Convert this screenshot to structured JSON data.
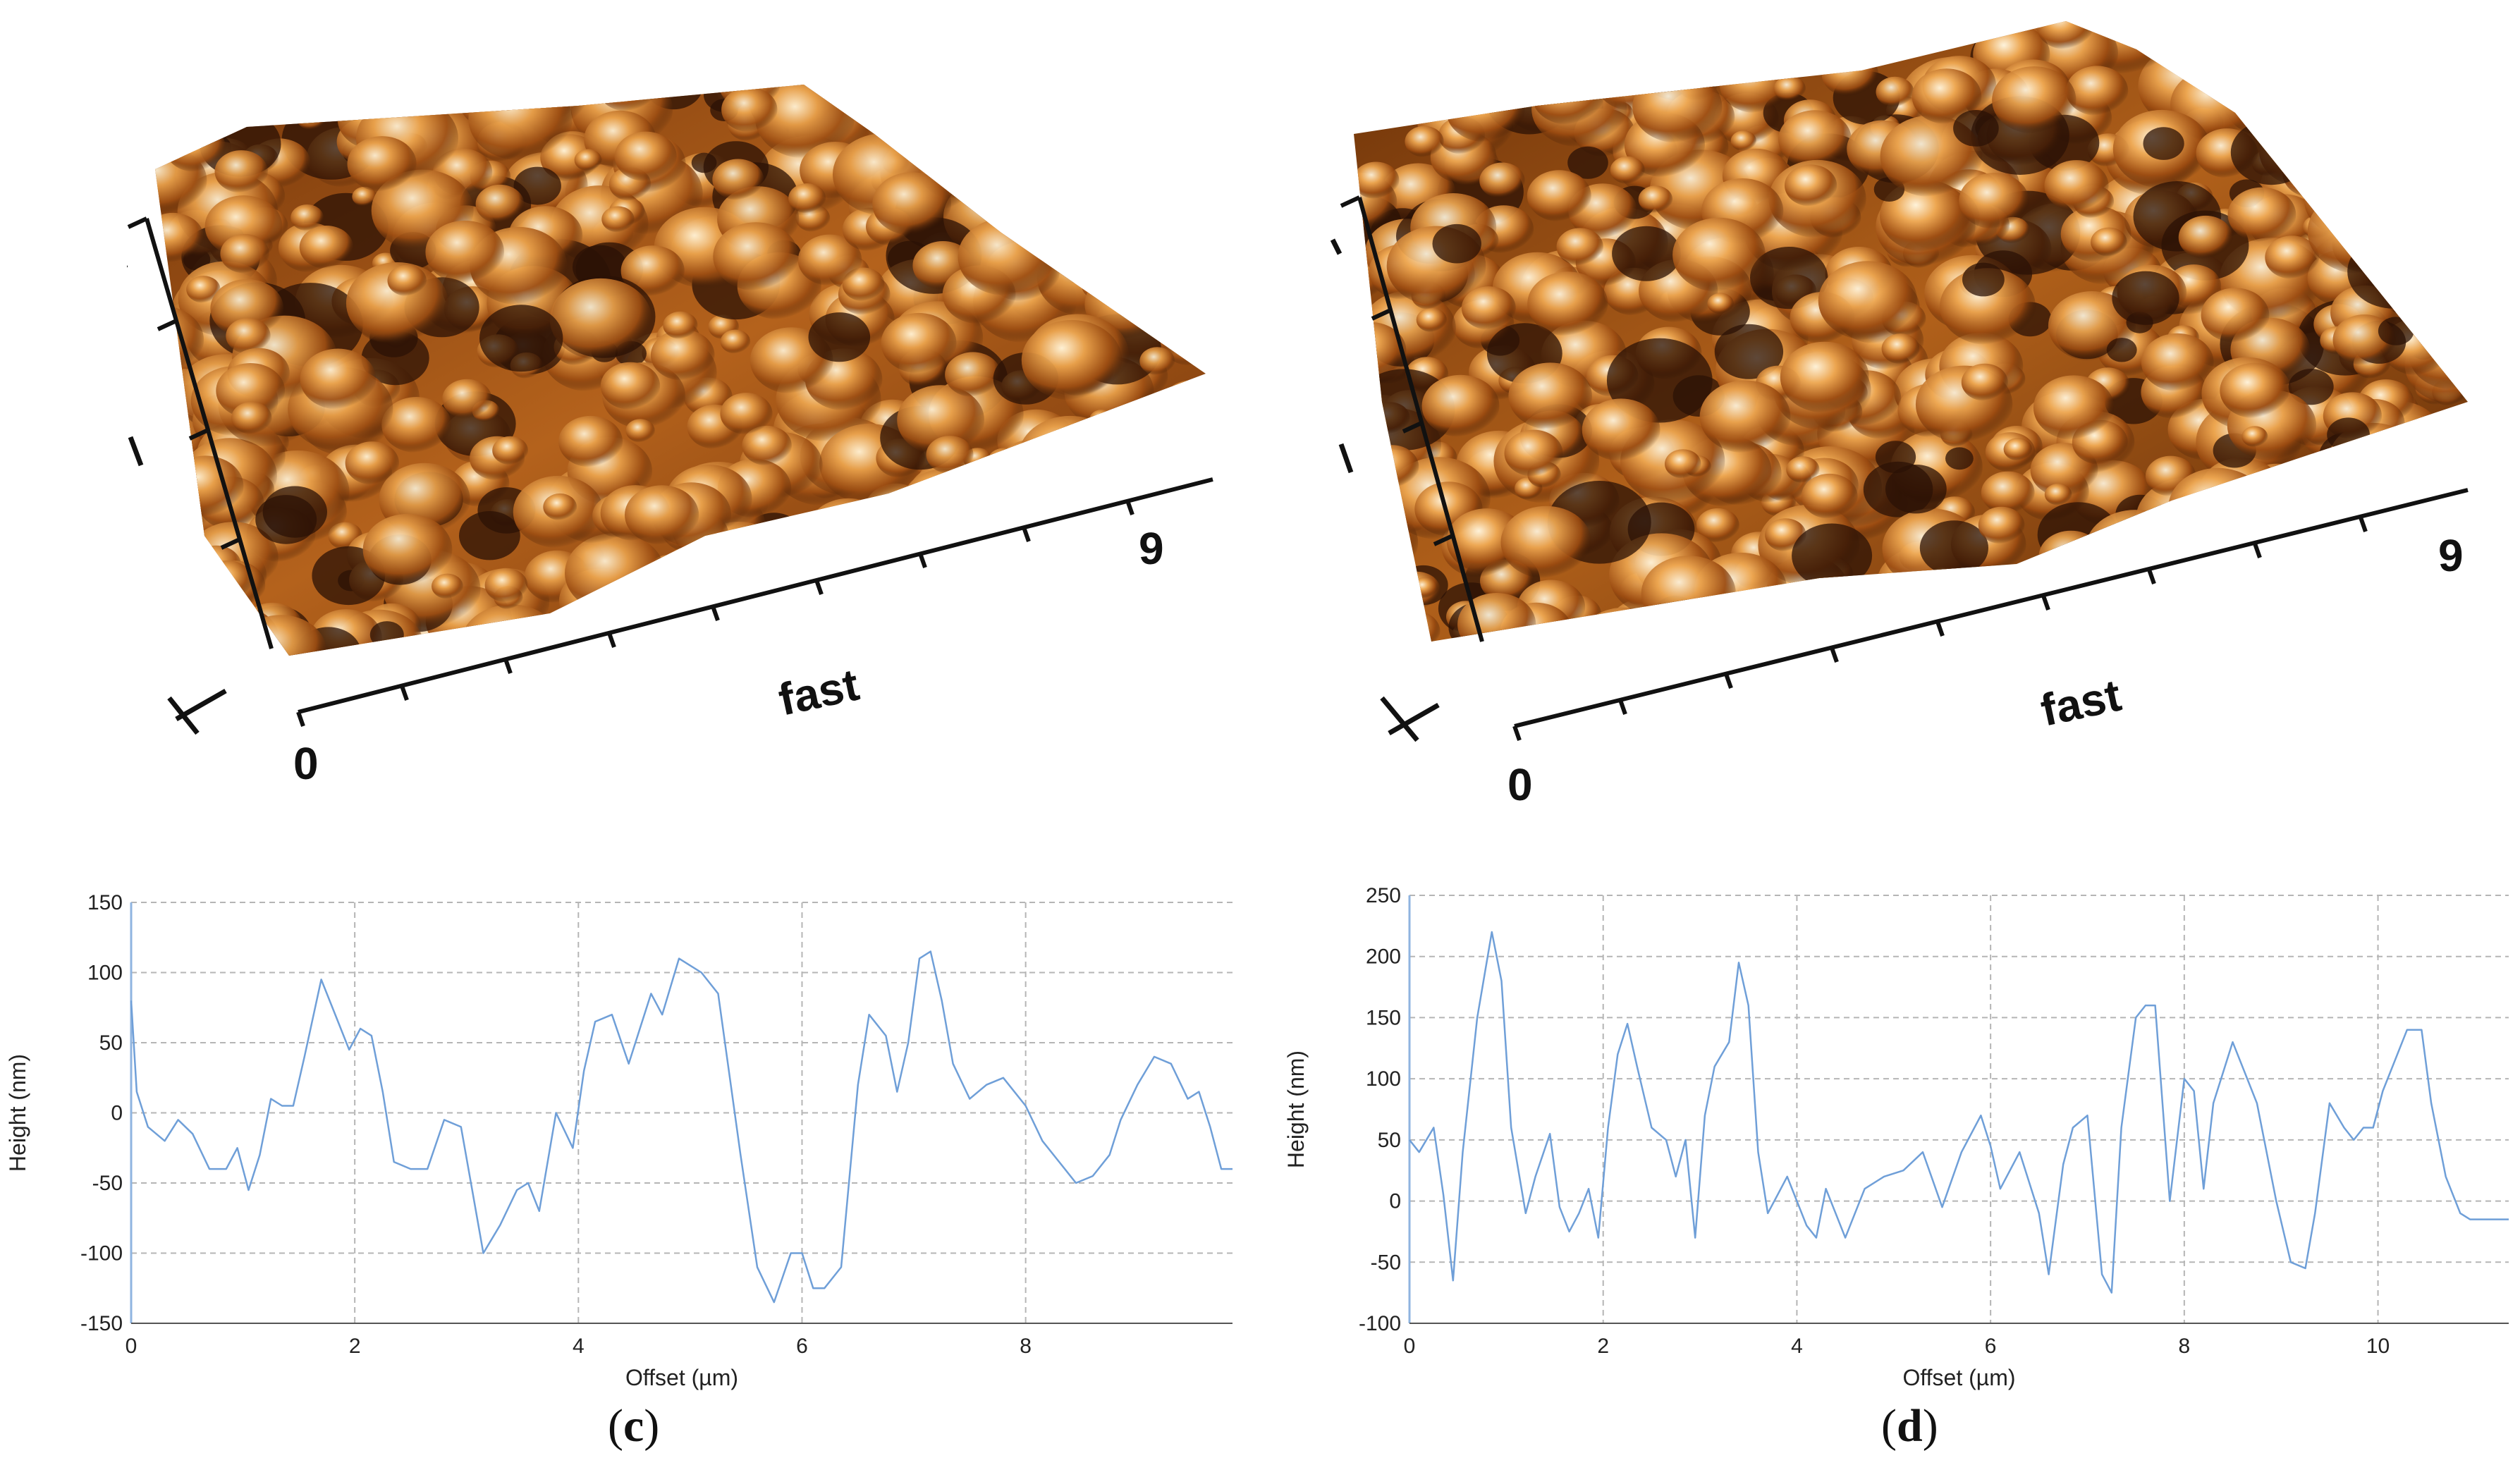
{
  "colors": {
    "profile_line": "#6f9fd8",
    "grid": "#b5b5b5",
    "axis": "#8fb4e0",
    "afm_dark": "#2b1205",
    "afm_mid": "#b5651d",
    "afm_light": "#f3e1b5"
  },
  "panels": [
    {
      "caption_letter": "c",
      "surface": {
        "origin_label": "0",
        "x_max_label": "9",
        "x_axis_label": "fast"
      },
      "profile": {
        "type": "line",
        "xlabel": "Offset (µm)",
        "ylabel": "Height (nm)",
        "xlim": [
          0,
          9.85
        ],
        "ylim": [
          -150,
          150
        ],
        "yticks": [
          150,
          100,
          50,
          0,
          -50,
          -100,
          -150
        ],
        "xticks": [
          0,
          2,
          4,
          6,
          8
        ],
        "x": [
          0,
          0.05,
          0.15,
          0.3,
          0.42,
          0.55,
          0.7,
          0.85,
          0.95,
          1.05,
          1.15,
          1.25,
          1.35,
          1.45,
          1.55,
          1.7,
          1.85,
          1.95,
          2.05,
          2.15,
          2.25,
          2.35,
          2.5,
          2.65,
          2.8,
          2.95,
          3.05,
          3.15,
          3.3,
          3.45,
          3.55,
          3.65,
          3.8,
          3.95,
          4.05,
          4.15,
          4.3,
          4.45,
          4.55,
          4.65,
          4.75,
          4.9,
          5.0,
          5.1,
          5.25,
          5.45,
          5.6,
          5.75,
          5.9,
          6.0,
          6.1,
          6.2,
          6.35,
          6.5,
          6.6,
          6.75,
          6.85,
          6.95,
          7.05,
          7.15,
          7.25,
          7.35,
          7.5,
          7.65,
          7.8,
          8.0,
          8.15,
          8.3,
          8.45,
          8.6,
          8.75,
          8.85,
          9.0,
          9.15,
          9.3,
          9.45,
          9.55,
          9.65,
          9.75,
          9.85
        ],
        "y": [
          80,
          15,
          -10,
          -20,
          -5,
          -15,
          -40,
          -40,
          -25,
          -55,
          -30,
          10,
          5,
          5,
          40,
          95,
          65,
          45,
          60,
          55,
          15,
          -35,
          -40,
          -40,
          -5,
          -10,
          -55,
          -100,
          -80,
          -55,
          -50,
          -70,
          0,
          -25,
          30,
          65,
          70,
          35,
          60,
          85,
          70,
          110,
          105,
          100,
          85,
          -30,
          -110,
          -135,
          -100,
          -100,
          -125,
          -125,
          -110,
          20,
          70,
          55,
          15,
          50,
          110,
          115,
          80,
          35,
          10,
          20,
          25,
          5,
          -20,
          -35,
          -50,
          -45,
          -30,
          -5,
          20,
          40,
          35,
          10,
          15,
          -10,
          -40,
          -40
        ]
      }
    },
    {
      "caption_letter": "d",
      "surface": {
        "origin_label": "0",
        "x_max_label": "9",
        "x_axis_label": "fast"
      },
      "profile": {
        "type": "line",
        "xlabel": "Offset (µm)",
        "ylabel": "Height (nm)",
        "xlim": [
          0,
          11.35
        ],
        "ylim": [
          -100,
          250
        ],
        "yticks": [
          250,
          200,
          150,
          100,
          50,
          0,
          -50,
          -100
        ],
        "xticks": [
          0,
          2,
          4,
          6,
          8,
          10
        ],
        "x": [
          0,
          0.1,
          0.25,
          0.35,
          0.45,
          0.55,
          0.7,
          0.85,
          0.95,
          1.05,
          1.2,
          1.3,
          1.45,
          1.55,
          1.65,
          1.75,
          1.85,
          1.95,
          2.05,
          2.15,
          2.25,
          2.35,
          2.5,
          2.65,
          2.75,
          2.85,
          2.95,
          3.05,
          3.15,
          3.3,
          3.4,
          3.5,
          3.6,
          3.7,
          3.8,
          3.9,
          4.0,
          4.1,
          4.2,
          4.3,
          4.5,
          4.7,
          4.9,
          5.1,
          5.3,
          5.5,
          5.7,
          5.9,
          6.0,
          6.1,
          6.3,
          6.5,
          6.6,
          6.75,
          6.85,
          7.0,
          7.15,
          7.25,
          7.35,
          7.5,
          7.6,
          7.7,
          7.85,
          8.0,
          8.1,
          8.2,
          8.3,
          8.4,
          8.5,
          8.6,
          8.75,
          8.95,
          9.1,
          9.25,
          9.35,
          9.5,
          9.65,
          9.75,
          9.85,
          9.95,
          10.05,
          10.15,
          10.3,
          10.45,
          10.55,
          10.7,
          10.85,
          10.95,
          11.1,
          11.2,
          11.35
        ],
        "y": [
          50,
          40,
          60,
          5,
          -65,
          40,
          150,
          220,
          180,
          60,
          -10,
          20,
          55,
          -5,
          -25,
          -10,
          10,
          -30,
          60,
          120,
          145,
          110,
          60,
          50,
          20,
          50,
          -30,
          70,
          110,
          130,
          195,
          160,
          40,
          -10,
          5,
          20,
          0,
          -20,
          -30,
          10,
          -30,
          10,
          20,
          25,
          40,
          -5,
          40,
          70,
          45,
          10,
          40,
          -10,
          -60,
          30,
          60,
          70,
          -60,
          -75,
          60,
          150,
          160,
          160,
          0,
          100,
          90,
          10,
          80,
          105,
          130,
          110,
          80,
          0,
          -50,
          -55,
          -10,
          80,
          60,
          50,
          60,
          60,
          90,
          110,
          140,
          140,
          80,
          20,
          -10,
          -15,
          -15,
          -15,
          -15
        ]
      }
    }
  ]
}
